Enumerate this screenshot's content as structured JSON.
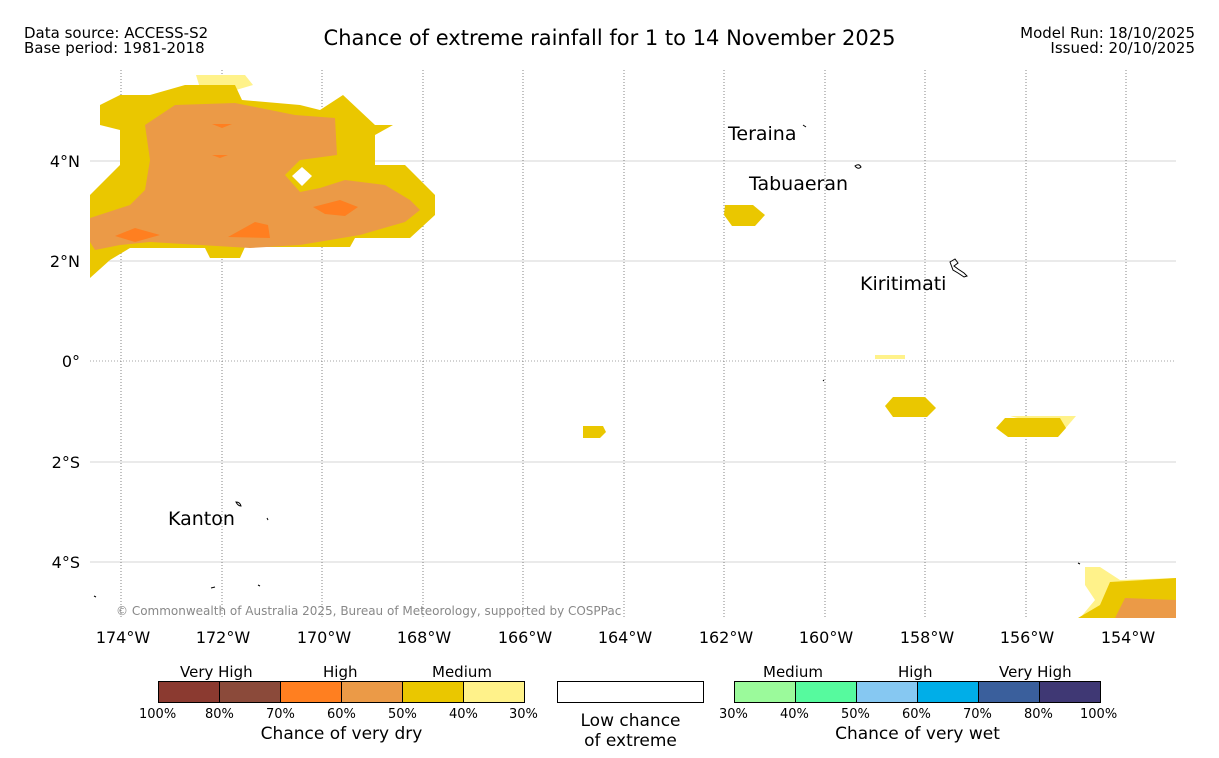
{
  "header": {
    "data_source": "Data source: ACCESS-S2",
    "base_period": "Base period: 1981-2018",
    "title": "Chance of extreme rainfall for 1 to 14 November 2025",
    "model_run": "Model Run: 18/10/2025",
    "issued": "Issued: 20/10/2025"
  },
  "map": {
    "copyright": "© Commonwealth of Australia 2025, Bureau of Meteorology, supported by COSPPac",
    "lon_labels": [
      "174°W",
      "172°W",
      "170°W",
      "168°W",
      "166°W",
      "164°W",
      "162°W",
      "160°W",
      "158°W",
      "156°W",
      "154°W"
    ],
    "lat_labels": [
      "4°N",
      "2°N",
      "0°",
      "2°S",
      "4°S"
    ],
    "places": [
      "Teraina",
      "Tabuaeran",
      "Kiritimati",
      "Kanton"
    ]
  },
  "legend": {
    "dry": {
      "groups": [
        "Very High",
        "High",
        "Medium"
      ],
      "colors": [
        "#8b3a30",
        "#8b4a3a",
        "#ff7f20",
        "#eb9a47",
        "#eac700",
        "#fff28a"
      ],
      "ticks": [
        "100%",
        "80%",
        "70%",
        "60%",
        "50%",
        "40%",
        "30%"
      ],
      "caption": "Chance of very dry"
    },
    "low": {
      "line1": "Low chance",
      "line2": "of extreme"
    },
    "wet": {
      "groups": [
        "Medium",
        "High",
        "Very High"
      ],
      "colors": [
        "#9bfa9b",
        "#56fa9e",
        "#86c8f2",
        "#00aee8",
        "#3a5f9c",
        "#3f3874"
      ],
      "ticks": [
        "30%",
        "40%",
        "50%",
        "60%",
        "70%",
        "80%",
        "100%"
      ],
      "caption": "Chance of very wet"
    }
  }
}
